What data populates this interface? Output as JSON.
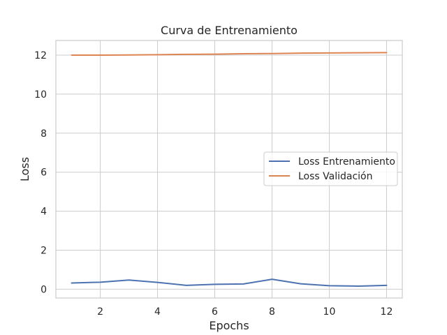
{
  "chart_data": {
    "type": "line",
    "title": "Curva de Entrenamiento",
    "xlabel": "Epochs",
    "ylabel": "Loss",
    "xlim": [
      0.45,
      12.55
    ],
    "ylim": [
      -0.45,
      12.75
    ],
    "xticks": [
      2,
      4,
      6,
      8,
      10,
      12
    ],
    "yticks": [
      0,
      2,
      4,
      6,
      8,
      10,
      12
    ],
    "grid": true,
    "legend_position": "center-right",
    "x": [
      1,
      2,
      3,
      4,
      5,
      6,
      7,
      8,
      9,
      10,
      11,
      12
    ],
    "series": [
      {
        "name": "Loss Entrenamiento",
        "color": "#4c72b0",
        "values": [
          0.32,
          0.36,
          0.47,
          0.35,
          0.2,
          0.25,
          0.27,
          0.51,
          0.28,
          0.18,
          0.16,
          0.2
        ]
      },
      {
        "name": "Loss Validación",
        "color": "#dd8452",
        "values": [
          12.0,
          12.0,
          12.01,
          12.02,
          12.04,
          12.05,
          12.07,
          12.08,
          12.1,
          12.11,
          12.12,
          12.13
        ]
      }
    ]
  }
}
